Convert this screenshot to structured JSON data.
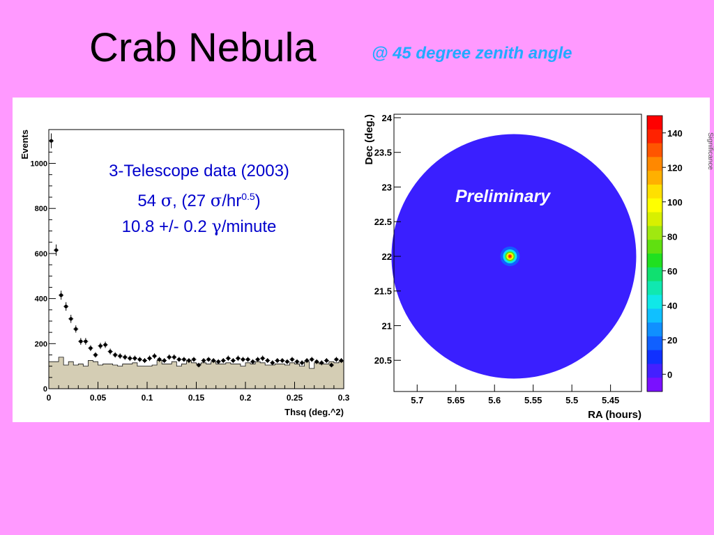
{
  "slide": {
    "title": "Crab Nebula",
    "subtitle": "@ 45 degree zenith angle"
  },
  "colors": {
    "background": "#ff99ff",
    "subtitle": "#22aaff",
    "annotation": "#0000cc",
    "histogram_fill": "#d4cdb4",
    "skymap_background": "#3a1fff"
  },
  "annotation": {
    "line1": "3-Telescope data (2003)",
    "line2_a": "54 ",
    "line2_sigma": "σ",
    "line2_b": ",   (27 ",
    "line2_sigma2": "σ",
    "line2_c": "/hr",
    "line2_exp": "0.5",
    "line2_d": ")",
    "line3_a": "10.8 +/- 0.2 ",
    "line3_gamma": "γ",
    "line3_b": "/minute"
  },
  "chart_data": [
    {
      "type": "scatter",
      "xlabel": "Thsq (deg.^2)",
      "ylabel": "Events",
      "xlim": [
        0,
        0.3
      ],
      "ylim": [
        0,
        1150
      ],
      "x_ticks": [
        "0",
        "0.05",
        "0.1",
        "0.15",
        "0.2",
        "0.25",
        "0.3"
      ],
      "y_ticks": [
        "0",
        "200",
        "400",
        "600",
        "800",
        "1000"
      ],
      "series": [
        {
          "kind": "points-with-errors",
          "x": [
            0.0025,
            0.0075,
            0.0125,
            0.0175,
            0.0225,
            0.0275,
            0.0325,
            0.0375,
            0.0425,
            0.0475,
            0.0525,
            0.0575,
            0.0625,
            0.0675,
            0.0725,
            0.0775,
            0.0825,
            0.0875,
            0.0925,
            0.0975,
            0.1025,
            0.1075,
            0.1125,
            0.1175,
            0.1225,
            0.1275,
            0.1325,
            0.1375,
            0.1425,
            0.1475,
            0.1525,
            0.1575,
            0.1625,
            0.1675,
            0.1725,
            0.1775,
            0.1825,
            0.1875,
            0.1925,
            0.1975,
            0.2025,
            0.2075,
            0.2125,
            0.2175,
            0.2225,
            0.2275,
            0.2325,
            0.2375,
            0.2425,
            0.2475,
            0.2525,
            0.2575,
            0.2625,
            0.2675,
            0.2725,
            0.2775,
            0.2825,
            0.2875,
            0.2925,
            0.2975
          ],
          "y": [
            1100,
            615,
            415,
            365,
            310,
            265,
            210,
            210,
            180,
            150,
            190,
            195,
            165,
            150,
            145,
            140,
            135,
            135,
            130,
            125,
            135,
            145,
            130,
            125,
            140,
            140,
            130,
            130,
            125,
            130,
            105,
            125,
            130,
            125,
            120,
            125,
            135,
            125,
            135,
            130,
            130,
            120,
            130,
            135,
            125,
            115,
            125,
            125,
            120,
            130,
            120,
            115,
            125,
            130,
            120,
            115,
            125,
            105,
            130,
            125
          ],
          "errors": [
            33,
            25,
            20,
            19,
            18,
            16,
            15,
            15,
            13,
            12,
            14,
            14,
            13,
            12,
            12,
            12,
            12,
            12,
            11,
            11,
            12,
            12,
            11,
            11,
            12,
            12,
            11,
            11,
            11,
            11,
            10,
            11,
            11,
            11,
            11,
            11,
            12,
            11,
            12,
            11,
            11,
            11,
            11,
            12,
            11,
            11,
            11,
            11,
            11,
            11,
            11,
            11,
            11,
            11,
            11,
            11,
            11,
            10,
            11,
            11
          ]
        },
        {
          "kind": "background-histogram",
          "x": [
            0.0025,
            0.0075,
            0.0125,
            0.0175,
            0.0225,
            0.0275,
            0.0325,
            0.0375,
            0.0425,
            0.0475,
            0.0525,
            0.0575,
            0.0625,
            0.0675,
            0.0725,
            0.0775,
            0.0825,
            0.0875,
            0.0925,
            0.0975,
            0.1025,
            0.1075,
            0.1125,
            0.1175,
            0.1225,
            0.1275,
            0.1325,
            0.1375,
            0.1425,
            0.1475,
            0.1525,
            0.1575,
            0.1625,
            0.1675,
            0.1725,
            0.1775,
            0.1825,
            0.1875,
            0.1925,
            0.1975,
            0.2025,
            0.2075,
            0.2125,
            0.2175,
            0.2225,
            0.2275,
            0.2325,
            0.2375,
            0.2425,
            0.2475,
            0.2525,
            0.2575,
            0.2625,
            0.2675,
            0.2725,
            0.2775,
            0.2825,
            0.2875,
            0.2925,
            0.2975
          ],
          "y": [
            120,
            120,
            140,
            105,
            120,
            105,
            110,
            100,
            125,
            120,
            105,
            110,
            110,
            105,
            100,
            110,
            110,
            115,
            100,
            100,
            100,
            105,
            125,
            110,
            110,
            120,
            100,
            110,
            125,
            115,
            110,
            115,
            110,
            120,
            110,
            110,
            115,
            110,
            110,
            100,
            115,
            110,
            120,
            115,
            105,
            105,
            110,
            110,
            105,
            115,
            110,
            100,
            120,
            90,
            115,
            110,
            110,
            120,
            115,
            120
          ]
        }
      ]
    },
    {
      "type": "heatmap",
      "xlabel": "RA (hours)",
      "ylabel": "Dec (deg.)",
      "xlim": [
        5.73,
        5.41
      ],
      "ylim": [
        20.05,
        24.05
      ],
      "x_ticks": [
        "5.7",
        "5.65",
        "5.6",
        "5.55",
        "5.5",
        "5.45"
      ],
      "y_ticks": [
        "20.5",
        "21",
        "21.5",
        "22",
        "22.5",
        "23",
        "23.5",
        "24"
      ],
      "annotation": "Preliminary",
      "field_center": {
        "ra": 5.575,
        "dec": 22.0
      },
      "source_peak": {
        "ra": 5.58,
        "dec": 22.0,
        "value": 140
      },
      "background_level": 0,
      "colorbar": {
        "ticks": [
          "140",
          "120",
          "100",
          "80",
          "60",
          "40",
          "20",
          "0"
        ],
        "range": [
          -10,
          150
        ],
        "colors": [
          "#7a10ff",
          "#4420ff",
          "#1030ff",
          "#1060ff",
          "#1090ff",
          "#10c0ff",
          "#10e8e8",
          "#10e8b0",
          "#10e070",
          "#20e020",
          "#60e010",
          "#a0e810",
          "#d8f000",
          "#ffff00",
          "#ffe000",
          "#ffb000",
          "#ff8800",
          "#ff5500",
          "#ff2200",
          "#ff0000"
        ]
      }
    }
  ],
  "edge_text": "Significance"
}
